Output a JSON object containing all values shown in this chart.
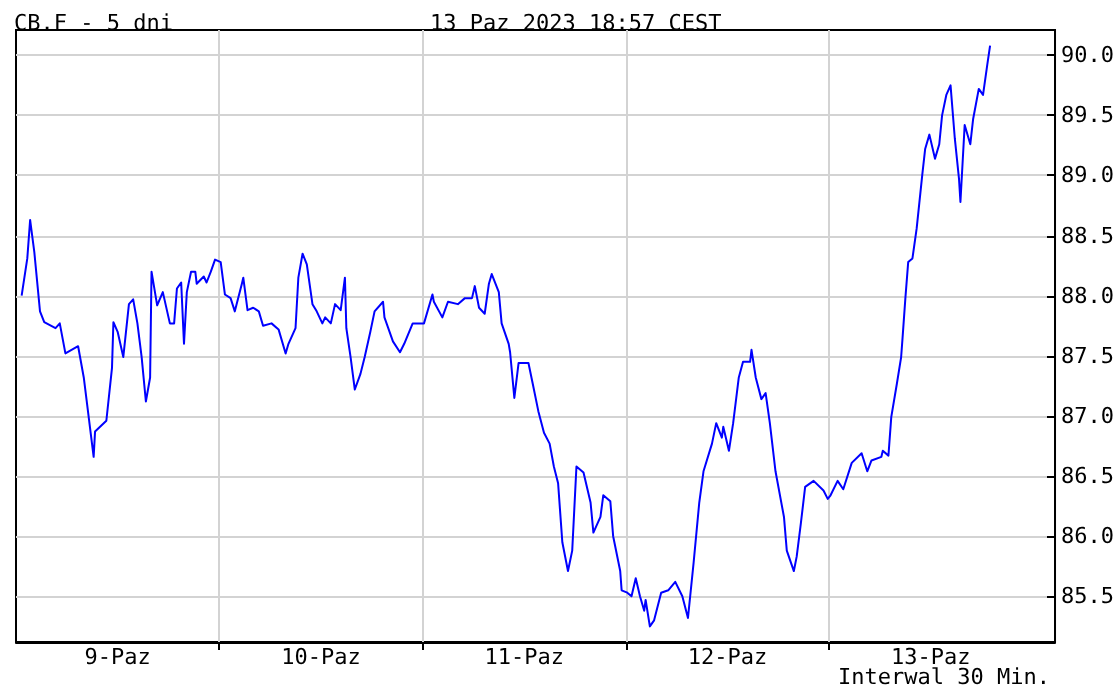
{
  "chart_data": {
    "type": "line",
    "title": "CB.F - 5 dni",
    "subtitle": "13 Paz 2023 18:57 CEST",
    "annotations": [
      "Interwal 30 Min."
    ],
    "xlim": [
      "2023-10-09T00:00",
      "2023-10-14T02:40"
    ],
    "xticks": [
      {
        "value": "2023-10-09T12:00",
        "label": "9-Paz"
      },
      {
        "value": "2023-10-10T00:00",
        "label": null
      },
      {
        "value": "2023-10-10T12:00",
        "label": "10-Paz"
      },
      {
        "value": "2023-10-11T00:00",
        "label": null
      },
      {
        "value": "2023-10-11T12:00",
        "label": "11-Paz"
      },
      {
        "value": "2023-10-12T00:00",
        "label": null
      },
      {
        "value": "2023-10-12T12:00",
        "label": "12-Paz"
      },
      {
        "value": "2023-10-13T00:00",
        "label": null
      },
      {
        "value": "2023-10-13T12:00",
        "label": "13-Paz"
      }
    ],
    "ylim": [
      85.12,
      90.21
    ],
    "yticks": [
      {
        "value": 85.5,
        "label": "85.5"
      },
      {
        "value": 86,
        "label": "86.0"
      },
      {
        "value": 86.5,
        "label": "86.5"
      },
      {
        "value": 87,
        "label": "87.0"
      },
      {
        "value": 87.5,
        "label": "87.5"
      },
      {
        "value": 88,
        "label": "88.0"
      },
      {
        "value": 88.5,
        "label": "88.5"
      },
      {
        "value": 89,
        "label": "89.0"
      },
      {
        "value": 89.5,
        "label": "89.5"
      },
      {
        "value": 90,
        "label": "90.0"
      }
    ],
    "grid": true,
    "marker": "none",
    "line_style": "solid",
    "series": [
      {
        "color": "#0000ff",
        "x": [
          "2023-10-09T00:40",
          "2023-10-09T01:20",
          "2023-10-09T01:40",
          "2023-10-09T02:10",
          "2023-10-09T02:50",
          "2023-10-09T03:20",
          "2023-10-09T04:40",
          "2023-10-09T05:10",
          "2023-10-09T05:50",
          "2023-10-09T07:20",
          "2023-10-09T08:00",
          "2023-10-09T09:10",
          "2023-10-09T09:20",
          "2023-10-09T10:40",
          "2023-10-09T11:20",
          "2023-10-09T11:30",
          "2023-10-09T12:00",
          "2023-10-09T12:40",
          "2023-10-09T13:20",
          "2023-10-09T13:50",
          "2023-10-09T14:20",
          "2023-10-09T14:50",
          "2023-10-09T15:20",
          "2023-10-09T15:50",
          "2023-10-09T16:00",
          "2023-10-09T16:40",
          "2023-10-09T17:20",
          "2023-10-09T18:10",
          "2023-10-09T18:40",
          "2023-10-09T19:00",
          "2023-10-09T19:30",
          "2023-10-09T19:50",
          "2023-10-09T20:10",
          "2023-10-09T20:40",
          "2023-10-09T21:10",
          "2023-10-09T21:20",
          "2023-10-09T22:10",
          "2023-10-09T22:30",
          "2023-10-09T23:00",
          "2023-10-09T23:30",
          "2023-10-10T00:10",
          "2023-10-10T00:40",
          "2023-10-10T01:20",
          "2023-10-10T01:50",
          "2023-10-10T02:40",
          "2023-10-10T02:50",
          "2023-10-10T03:20",
          "2023-10-10T04:00",
          "2023-10-10T04:40",
          "2023-10-10T05:10",
          "2023-10-10T06:10",
          "2023-10-10T07:00",
          "2023-10-10T07:50",
          "2023-10-10T08:10",
          "2023-10-10T09:00",
          "2023-10-10T09:20",
          "2023-10-10T09:50",
          "2023-10-10T10:20",
          "2023-10-10T11:00",
          "2023-10-10T11:30",
          "2023-10-10T12:10",
          "2023-10-10T12:30",
          "2023-10-10T13:10",
          "2023-10-10T13:40",
          "2023-10-10T14:20",
          "2023-10-10T14:50",
          "2023-10-10T15:00",
          "2023-10-10T15:30",
          "2023-10-10T16:00",
          "2023-10-10T16:40",
          "2023-10-10T17:10",
          "2023-10-10T17:50",
          "2023-10-10T18:20",
          "2023-10-10T19:20",
          "2023-10-10T19:30",
          "2023-10-10T20:30",
          "2023-10-10T21:20",
          "2023-10-10T21:50",
          "2023-10-10T22:50",
          "2023-10-11T00:10",
          "2023-10-11T01:10",
          "2023-10-11T01:20",
          "2023-10-11T02:20",
          "2023-10-11T03:00",
          "2023-10-11T04:10",
          "2023-10-11T05:00",
          "2023-10-11T05:50",
          "2023-10-11T06:10",
          "2023-10-11T06:40",
          "2023-10-11T07:20",
          "2023-10-11T07:50",
          "2023-10-11T08:10",
          "2023-10-11T09:00",
          "2023-10-11T09:20",
          "2023-10-11T10:10",
          "2023-10-11T10:20",
          "2023-10-11T10:50",
          "2023-10-11T11:20",
          "2023-10-11T12:30",
          "2023-10-11T13:00",
          "2023-10-11T13:40",
          "2023-10-11T14:20",
          "2023-10-11T15:00",
          "2023-10-11T15:30",
          "2023-10-11T16:00",
          "2023-10-11T16:30",
          "2023-10-11T17:10",
          "2023-10-11T17:40",
          "2023-10-11T18:10",
          "2023-10-11T19:00",
          "2023-10-11T19:50",
          "2023-10-11T20:10",
          "2023-10-11T21:00",
          "2023-10-11T21:20",
          "2023-10-11T22:10",
          "2023-10-11T22:30",
          "2023-10-11T23:20",
          "2023-10-11T23:30",
          "2023-10-12T00:10",
          "2023-10-12T00:40",
          "2023-10-12T01:10",
          "2023-10-12T01:40",
          "2023-10-12T02:10",
          "2023-10-12T02:20",
          "2023-10-12T02:50",
          "2023-10-12T03:20",
          "2023-10-12T04:10",
          "2023-10-12T05:00",
          "2023-10-12T05:50",
          "2023-10-12T06:40",
          "2023-10-12T07:20",
          "2023-10-12T08:00",
          "2023-10-12T08:40",
          "2023-10-12T09:10",
          "2023-10-12T10:10",
          "2023-10-12T10:40",
          "2023-10-12T11:20",
          "2023-10-12T11:30",
          "2023-10-12T12:10",
          "2023-10-12T12:40",
          "2023-10-12T13:20",
          "2023-10-12T13:50",
          "2023-10-12T14:40",
          "2023-10-12T14:50",
          "2023-10-12T15:20",
          "2023-10-12T16:00",
          "2023-10-12T16:30",
          "2023-10-12T17:00",
          "2023-10-12T17:40",
          "2023-10-12T18:40",
          "2023-10-12T19:00",
          "2023-10-12T19:50",
          "2023-10-12T20:10",
          "2023-10-12T20:40",
          "2023-10-12T21:10",
          "2023-10-12T22:10",
          "2023-10-12T23:20",
          "2023-10-12T23:50",
          "2023-10-13T00:10",
          "2023-10-13T01:00",
          "2023-10-13T01:40",
          "2023-10-13T02:40",
          "2023-10-13T03:50",
          "2023-10-13T04:30",
          "2023-10-13T05:00",
          "2023-10-13T06:10",
          "2023-10-13T06:20",
          "2023-10-13T07:00",
          "2023-10-13T07:20",
          "2023-10-13T08:00",
          "2023-10-13T08:30",
          "2023-10-13T08:40",
          "2023-10-13T09:00",
          "2023-10-13T09:20",
          "2023-10-13T09:50",
          "2023-10-13T10:20",
          "2023-10-13T11:00",
          "2023-10-13T11:20",
          "2023-10-13T11:50",
          "2023-10-13T12:30",
          "2023-10-13T13:00",
          "2023-10-13T13:20",
          "2023-10-13T13:50",
          "2023-10-13T14:20",
          "2023-10-13T14:50",
          "2023-10-13T15:20",
          "2023-10-13T15:30",
          "2023-10-13T16:00",
          "2023-10-13T16:40",
          "2023-10-13T17:00",
          "2023-10-13T17:40",
          "2023-10-13T18:10",
          "2023-10-13T18:40",
          "2023-10-13T19:00"
        ],
        "values": [
          88.0,
          88.31,
          88.63,
          88.36,
          87.87,
          87.78,
          87.73,
          87.77,
          87.52,
          87.58,
          87.32,
          86.66,
          86.87,
          86.96,
          87.4,
          87.78,
          87.7,
          87.49,
          87.93,
          87.97,
          87.77,
          87.49,
          87.12,
          87.32,
          88.2,
          87.92,
          88.03,
          87.77,
          87.77,
          88.06,
          88.11,
          87.6,
          88.03,
          88.2,
          88.2,
          88.1,
          88.16,
          88.11,
          88.2,
          88.3,
          88.28,
          88.01,
          87.98,
          87.87,
          88.1,
          88.15,
          87.88,
          87.9,
          87.87,
          87.75,
          87.77,
          87.72,
          87.52,
          87.6,
          87.73,
          88.15,
          88.35,
          88.26,
          87.93,
          87.87,
          87.77,
          87.82,
          87.77,
          87.93,
          87.88,
          88.15,
          87.73,
          87.49,
          87.22,
          87.35,
          87.49,
          87.7,
          87.87,
          87.95,
          87.82,
          87.62,
          87.53,
          87.6,
          87.77,
          87.77,
          88.01,
          87.95,
          87.82,
          87.95,
          87.93,
          87.98,
          87.98,
          88.08,
          87.9,
          87.85,
          88.1,
          88.18,
          88.03,
          87.77,
          87.6,
          87.53,
          87.15,
          87.44,
          87.44,
          87.27,
          87.04,
          86.86,
          86.77,
          86.58,
          86.44,
          85.95,
          85.71,
          85.88,
          86.58,
          86.53,
          86.28,
          86.03,
          86.16,
          86.34,
          86.29,
          86.0,
          85.71,
          85.55,
          85.53,
          85.5,
          85.65,
          85.5,
          85.38,
          85.47,
          85.25,
          85.3,
          85.53,
          85.55,
          85.62,
          85.5,
          85.32,
          85.78,
          86.28,
          86.54,
          86.77,
          86.94,
          86.82,
          86.91,
          86.71,
          86.94,
          87.32,
          87.45,
          87.45,
          87.55,
          87.32,
          87.14,
          87.19,
          86.94,
          86.54,
          86.16,
          85.88,
          85.71,
          85.83,
          86.11,
          86.41,
          86.46,
          86.38,
          86.31,
          86.34,
          86.46,
          86.39,
          86.61,
          86.69,
          86.54,
          86.63,
          86.66,
          86.71,
          86.67,
          86.99,
          87.27,
          87.49,
          87.65,
          87.98,
          88.28,
          88.31,
          88.56,
          89.01,
          89.22,
          89.34,
          89.14,
          89.26,
          89.5,
          89.67,
          89.75,
          89.31,
          88.97,
          88.78,
          89.42,
          89.26,
          89.47,
          89.72,
          89.67,
          89.92,
          90.08
        ]
      }
    ]
  }
}
